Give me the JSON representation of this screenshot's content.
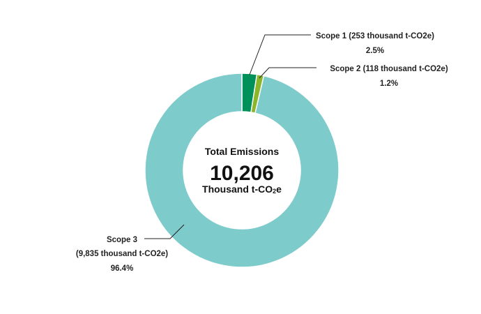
{
  "chart_data": {
    "type": "pie",
    "variant": "donut",
    "center": {
      "title": "Total Emissions",
      "value": "10,206",
      "unit_prefix": "Thousand t-CO",
      "unit_sub": "2",
      "unit_suffix": "e"
    },
    "slices": [
      {
        "name": "Scope 1",
        "value": 253,
        "percent": 2.5,
        "label_line1": "Scope 1 (253 thousand t-CO2e)",
        "label_line2": "2.5%",
        "color": "#00915a"
      },
      {
        "name": "Scope 2",
        "value": 118,
        "percent": 1.2,
        "label_line1": "Scope 2 (118 thousand t-CO2e)",
        "label_line2": "1.2%",
        "color": "#8cb629"
      },
      {
        "name": "Scope 3",
        "value": 9835,
        "percent": 96.4,
        "label_line1": "Scope 3",
        "label_line2": "(9,835 thousand t-CO2e)",
        "label_line3": "96.4%",
        "color": "#7ecbcc"
      }
    ]
  }
}
